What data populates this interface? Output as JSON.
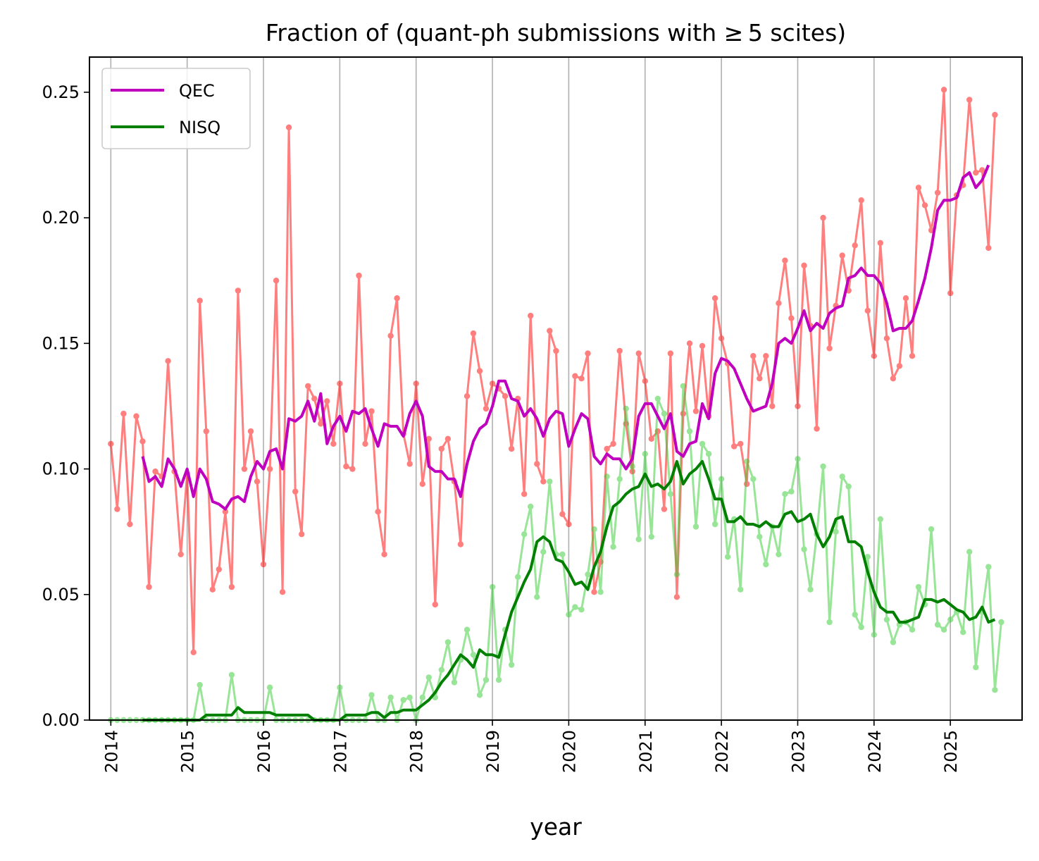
{
  "chart_data": {
    "type": "line",
    "title": "Fraction of (quant-ph submissions with ≥ 5 scites)",
    "xlabel": "year",
    "ylabel": "",
    "xlim": [
      2013.72,
      2025.94
    ],
    "ylim": [
      0,
      0.264
    ],
    "x_ticks": [
      "2014",
      "2015",
      "2016",
      "2017",
      "2018",
      "2019",
      "2020",
      "2021",
      "2022",
      "2023",
      "2024",
      "2025"
    ],
    "y_ticks": [
      "0.00",
      "0.05",
      "0.10",
      "0.15",
      "0.20",
      "0.25"
    ],
    "grid": "vertical lines at year ticks",
    "legend_position": "upper-left",
    "legend": [
      {
        "label": "QEC",
        "color": "#bf00bf"
      },
      {
        "label": "NISQ",
        "color": "#007f00"
      }
    ],
    "x_start_year": 2014.0,
    "x_step_years": 0.0833333,
    "series": [
      {
        "name": "QEC monthly",
        "role": "monthly",
        "color": "#ff0000",
        "opacity": 0.5,
        "values": [
          0.11,
          0.084,
          0.122,
          0.078,
          0.121,
          0.111,
          0.053,
          0.099,
          0.097,
          0.143,
          0.099,
          0.066,
          0.098,
          0.027,
          0.167,
          0.115,
          0.052,
          0.06,
          0.083,
          0.053,
          0.171,
          0.1,
          0.115,
          0.095,
          0.062,
          0.1,
          0.175,
          0.051,
          0.236,
          0.091,
          0.074,
          0.133,
          0.128,
          0.118,
          0.127,
          0.11,
          0.134,
          0.101,
          0.1,
          0.177,
          0.11,
          0.123,
          0.083,
          0.066,
          0.153,
          0.168,
          0.114,
          0.102,
          0.134,
          0.094,
          0.112,
          0.046,
          0.108,
          0.112,
          0.095,
          0.07,
          0.129,
          0.154,
          0.139,
          0.124,
          0.134,
          0.132,
          0.129,
          0.108,
          0.128,
          0.09,
          0.161,
          0.102,
          0.095,
          0.155,
          0.147,
          0.082,
          0.078,
          0.137,
          0.136,
          0.146,
          0.051,
          0.063,
          0.108,
          0.11,
          0.147,
          0.118,
          0.099,
          0.146,
          0.135,
          0.112,
          0.115,
          0.084,
          0.146,
          0.049,
          0.122,
          0.15,
          0.123,
          0.149,
          0.121,
          0.168,
          0.152,
          0.142,
          0.109,
          0.11,
          0.094,
          0.145,
          0.136,
          0.145,
          0.125,
          0.166,
          0.183,
          0.16,
          0.125,
          0.181,
          0.157,
          0.116,
          0.2,
          0.148,
          0.165,
          0.185,
          0.171,
          0.189,
          0.207,
          0.163,
          0.145,
          0.19,
          0.152,
          0.136,
          0.141,
          0.168,
          0.145,
          0.212,
          0.205,
          0.195,
          0.21,
          0.251,
          0.17,
          0.209,
          0.213,
          0.247,
          0.218,
          0.219,
          0.188,
          0.241
        ]
      },
      {
        "name": "QEC",
        "role": "rolling",
        "color": "#bf00bf",
        "start_index": 5,
        "values": [
          0.105,
          0.095,
          0.097,
          0.093,
          0.104,
          0.1,
          0.093,
          0.1,
          0.089,
          0.1,
          0.096,
          0.087,
          0.086,
          0.084,
          0.088,
          0.089,
          0.087,
          0.097,
          0.103,
          0.1,
          0.107,
          0.108,
          0.1,
          0.12,
          0.119,
          0.121,
          0.127,
          0.119,
          0.13,
          0.11,
          0.117,
          0.121,
          0.115,
          0.123,
          0.122,
          0.124,
          0.116,
          0.109,
          0.118,
          0.117,
          0.117,
          0.113,
          0.122,
          0.127,
          0.121,
          0.101,
          0.099,
          0.099,
          0.096,
          0.096,
          0.089,
          0.102,
          0.111,
          0.116,
          0.118,
          0.125,
          0.135,
          0.135,
          0.128,
          0.127,
          0.121,
          0.124,
          0.12,
          0.113,
          0.12,
          0.123,
          0.122,
          0.109,
          0.116,
          0.122,
          0.12,
          0.105,
          0.102,
          0.106,
          0.104,
          0.104,
          0.1,
          0.104,
          0.121,
          0.126,
          0.126,
          0.121,
          0.116,
          0.122,
          0.107,
          0.105,
          0.11,
          0.111,
          0.126,
          0.12,
          0.138,
          0.144,
          0.143,
          0.14,
          0.134,
          0.128,
          0.123,
          0.124,
          0.125,
          0.134,
          0.15,
          0.152,
          0.15,
          0.156,
          0.163,
          0.155,
          0.158,
          0.156,
          0.162,
          0.164,
          0.165,
          0.176,
          0.177,
          0.18,
          0.177,
          0.177,
          0.174,
          0.166,
          0.155,
          0.156,
          0.156,
          0.159,
          0.167,
          0.176,
          0.188,
          0.203,
          0.207,
          0.207,
          0.208,
          0.216,
          0.218,
          0.212,
          0.215,
          0.221
        ]
      },
      {
        "name": "NISQ monthly",
        "role": "monthly",
        "color": "#33cc33",
        "opacity": 0.5,
        "values": [
          0.0,
          0.0,
          0.0,
          0.0,
          0.0,
          0.0,
          0.0,
          0.0,
          0.0,
          0.0,
          0.0,
          0.0,
          0.0,
          0.0,
          0.014,
          0.0,
          0.0,
          0.0,
          0.0,
          0.018,
          0.0,
          0.0,
          0.0,
          0.0,
          0.0,
          0.013,
          0.0,
          0.0,
          0.0,
          0.0,
          0.0,
          0.0,
          0.0,
          0.0,
          0.0,
          0.0,
          0.013,
          0.0,
          0.0,
          0.0,
          0.0,
          0.01,
          0.0,
          0.0,
          0.009,
          0.0,
          0.008,
          0.009,
          0.0,
          0.009,
          0.017,
          0.009,
          0.02,
          0.031,
          0.015,
          0.024,
          0.036,
          0.026,
          0.01,
          0.016,
          0.053,
          0.016,
          0.036,
          0.022,
          0.057,
          0.074,
          0.085,
          0.049,
          0.067,
          0.095,
          0.066,
          0.066,
          0.042,
          0.045,
          0.044,
          0.058,
          0.076,
          0.051,
          0.097,
          0.069,
          0.096,
          0.124,
          0.101,
          0.072,
          0.106,
          0.073,
          0.128,
          0.122,
          0.09,
          0.058,
          0.133,
          0.115,
          0.077,
          0.11,
          0.106,
          0.078,
          0.096,
          0.065,
          0.08,
          0.052,
          0.103,
          0.096,
          0.073,
          0.062,
          0.077,
          0.066,
          0.09,
          0.091,
          0.104,
          0.068,
          0.052,
          0.074,
          0.101,
          0.039,
          0.075,
          0.097,
          0.093,
          0.042,
          0.037,
          0.065,
          0.034,
          0.08,
          0.04,
          0.031,
          0.038,
          0.039,
          0.036,
          0.053,
          0.046,
          0.076,
          0.038,
          0.036,
          0.04,
          0.043,
          0.035,
          0.067,
          0.021,
          0.043,
          0.061,
          0.012,
          0.039
        ]
      },
      {
        "name": "NISQ",
        "role": "rolling",
        "color": "#007f00",
        "start_index": 5,
        "values": [
          0.0,
          0.0,
          0.0,
          0.0,
          0.0,
          0.0,
          0.0,
          0.0,
          0.0,
          0.0,
          0.002,
          0.002,
          0.002,
          0.002,
          0.002,
          0.005,
          0.003,
          0.003,
          0.003,
          0.003,
          0.003,
          0.002,
          0.002,
          0.002,
          0.002,
          0.002,
          0.002,
          0.0,
          0.0,
          0.0,
          0.0,
          0.0,
          0.002,
          0.002,
          0.002,
          0.002,
          0.003,
          0.003,
          0.001,
          0.003,
          0.003,
          0.004,
          0.004,
          0.004,
          0.006,
          0.008,
          0.011,
          0.015,
          0.018,
          0.022,
          0.026,
          0.024,
          0.021,
          0.028,
          0.026,
          0.026,
          0.025,
          0.034,
          0.043,
          0.049,
          0.055,
          0.06,
          0.071,
          0.073,
          0.071,
          0.064,
          0.063,
          0.059,
          0.054,
          0.055,
          0.052,
          0.061,
          0.067,
          0.077,
          0.085,
          0.087,
          0.09,
          0.092,
          0.093,
          0.098,
          0.093,
          0.094,
          0.092,
          0.095,
          0.103,
          0.094,
          0.098,
          0.1,
          0.103,
          0.096,
          0.088,
          0.088,
          0.079,
          0.079,
          0.081,
          0.078,
          0.078,
          0.077,
          0.079,
          0.077,
          0.077,
          0.082,
          0.083,
          0.079,
          0.08,
          0.082,
          0.074,
          0.069,
          0.073,
          0.08,
          0.081,
          0.071,
          0.071,
          0.069,
          0.059,
          0.051,
          0.045,
          0.043,
          0.043,
          0.039,
          0.039,
          0.04,
          0.041,
          0.048,
          0.048,
          0.047,
          0.048,
          0.046,
          0.044,
          0.043,
          0.04,
          0.041,
          0.045,
          0.039,
          0.04
        ]
      }
    ]
  }
}
